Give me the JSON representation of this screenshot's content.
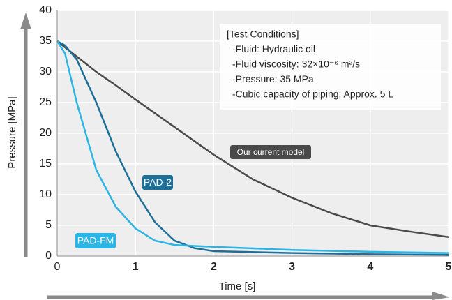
{
  "chart_data": {
    "type": "line",
    "xlabel": "Time [s]",
    "ylabel": "Pressure [MPa]",
    "xlim": [
      0,
      5
    ],
    "xticks": [
      0,
      1,
      2,
      3,
      4,
      5
    ],
    "ylim": [
      0,
      40
    ],
    "yticks": [
      0,
      5,
      10,
      15,
      20,
      25,
      30,
      35,
      40
    ],
    "grid": true,
    "series": [
      {
        "name": "Our current model",
        "color": "#4a4a4a",
        "x": [
          0,
          0.25,
          0.5,
          0.75,
          1,
          1.5,
          2,
          2.5,
          3,
          3.5,
          4,
          4.5,
          5
        ],
        "values": [
          35,
          32.5,
          30,
          27.8,
          25.5,
          21,
          16.5,
          12.5,
          9.5,
          7,
          5,
          4,
          3.1
        ]
      },
      {
        "name": "PAD-2",
        "color": "#1d6f98",
        "x": [
          0,
          0.1,
          0.25,
          0.5,
          0.75,
          1,
          1.25,
          1.5,
          1.75,
          2,
          3,
          4,
          5
        ],
        "values": [
          35,
          34.3,
          32,
          25,
          17,
          10.5,
          5.5,
          2.5,
          1.3,
          0.8,
          0.5,
          0.3,
          0.2
        ]
      },
      {
        "name": "PAD-FM",
        "color": "#2bb5e5",
        "x": [
          0,
          0.1,
          0.25,
          0.5,
          0.75,
          1,
          1.25,
          1.5,
          2,
          3,
          4,
          5
        ],
        "values": [
          35,
          33,
          25,
          14,
          8,
          4.5,
          2.5,
          1.8,
          1.5,
          1,
          0.7,
          0.5
        ]
      }
    ],
    "annotation": [
      "[Test Conditions]",
      "-Fluid: Hydraulic oil",
      "-Fluid viscosity: 32×10⁻⁶ m²/s",
      "-Pressure: 35 MPa",
      "-Cubic capacity of piping: Approx. 5 L"
    ]
  }
}
